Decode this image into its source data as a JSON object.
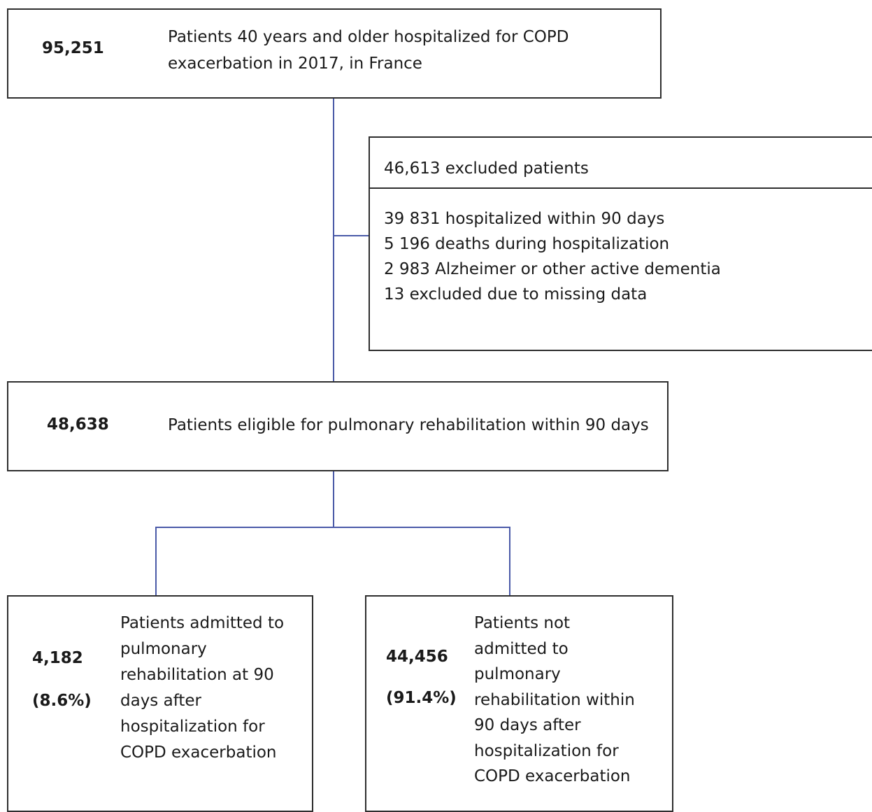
{
  "top_box": {
    "count": "95,251",
    "text_lines": [
      "Patients 40 years and older hospitalized for COPD",
      "exacerbation in 2017, in France"
    ]
  },
  "excluded_box": {
    "header": "46,613 excluded patients",
    "reasons": [
      "39 831 hospitalized within 90 days",
      "5 196 deaths during hospitalization",
      "2 983 Alzheimer or other active dementia",
      "13 excluded due to missing data"
    ]
  },
  "eligible_box": {
    "count": "48,638",
    "text": "Patients eligible for pulmonary rehabilitation within 90 days"
  },
  "admitted_box": {
    "count": "4,182",
    "percent": "(8.6%)",
    "text_lines": [
      "Patients admitted to",
      "pulmonary",
      "rehabilitation at 90",
      "days after",
      "hospitalization for",
      "COPD exacerbation"
    ]
  },
  "not_admitted_box": {
    "count": "44,456",
    "percent": "(91.4%)",
    "text_lines": [
      "Patients not",
      "admitted to",
      "pulmonary",
      "rehabilitation within",
      "90 days after",
      "hospitalization for",
      "COPD exacerbation"
    ]
  },
  "colors": {
    "connector": "#4a5aa8",
    "border": "#2e2e2e"
  }
}
